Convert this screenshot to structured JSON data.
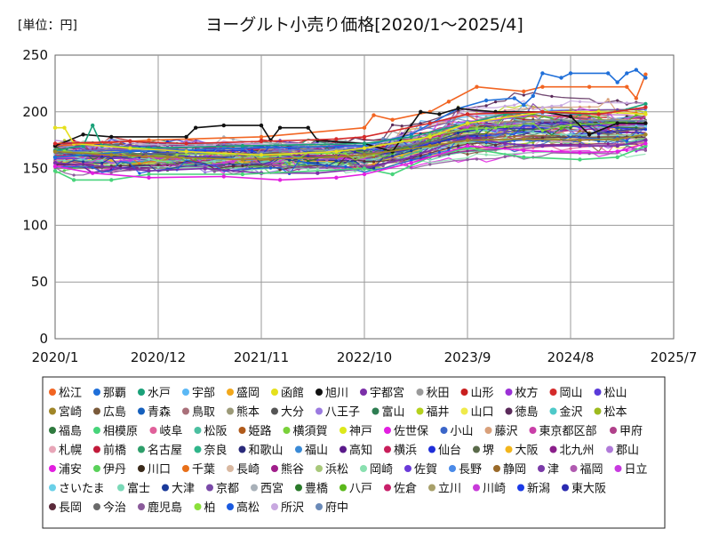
{
  "chart_data": {
    "type": "line",
    "title": "ヨーグルト小売り価格[2020/1～2025/4]",
    "unit_label": "[単位：円]",
    "xlabel": "",
    "ylabel": "",
    "ylim": [
      0,
      250
    ],
    "y_ticks": [
      0,
      50,
      100,
      150,
      200,
      250
    ],
    "x_domain": [
      0,
      66
    ],
    "x_tick_positions": [
      0,
      11,
      22,
      33,
      44,
      55,
      66
    ],
    "x_tick_labels": [
      "2020/1",
      "2020/12",
      "2021/11",
      "2022/10",
      "2023/9",
      "2024/8",
      "2025/7"
    ],
    "grid": true,
    "legend_position": "bottom",
    "n_months": 64,
    "highlights": [
      {
        "name": "松江",
        "color": "#F26522",
        "points": [
          [
            0,
            170
          ],
          [
            10,
            175
          ],
          [
            22,
            178
          ],
          [
            33,
            186
          ],
          [
            34,
            197
          ],
          [
            36,
            193
          ],
          [
            40,
            200
          ],
          [
            42,
            209
          ],
          [
            45,
            222
          ],
          [
            50,
            218
          ],
          [
            52,
            222
          ],
          [
            57,
            222
          ],
          [
            61,
            222
          ],
          [
            62,
            212
          ],
          [
            63,
            233
          ]
        ]
      },
      {
        "name": "那覇",
        "color": "#1F6FD9",
        "points": [
          [
            0,
            160
          ],
          [
            8,
            165
          ],
          [
            20,
            168
          ],
          [
            33,
            170
          ],
          [
            38,
            180
          ],
          [
            43,
            203
          ],
          [
            46,
            210
          ],
          [
            49,
            212
          ],
          [
            50,
            206
          ],
          [
            51,
            214
          ],
          [
            52,
            234
          ],
          [
            54,
            230
          ],
          [
            55,
            234
          ],
          [
            59,
            234
          ],
          [
            60,
            226
          ],
          [
            61,
            234
          ],
          [
            62,
            237
          ],
          [
            63,
            230
          ]
        ]
      },
      {
        "name": "旭川",
        "color": "#111111",
        "points": [
          [
            0,
            170
          ],
          [
            3,
            180
          ],
          [
            6,
            178
          ],
          [
            14,
            178
          ],
          [
            15,
            186
          ],
          [
            18,
            188
          ],
          [
            22,
            188
          ],
          [
            23,
            175
          ],
          [
            24,
            186
          ],
          [
            27,
            186
          ],
          [
            28,
            175
          ],
          [
            33,
            172
          ],
          [
            36,
            165
          ],
          [
            39,
            200
          ],
          [
            41,
            198
          ],
          [
            43,
            203
          ],
          [
            47,
            200
          ],
          [
            52,
            200
          ],
          [
            55,
            196
          ],
          [
            57,
            180
          ],
          [
            60,
            190
          ],
          [
            63,
            190
          ]
        ]
      },
      {
        "name": "水戸",
        "color": "#1AA179",
        "points": [
          [
            0,
            166
          ],
          [
            3,
            170
          ],
          [
            4,
            188
          ],
          [
            5,
            170
          ],
          [
            10,
            168
          ],
          [
            20,
            170
          ],
          [
            33,
            172
          ],
          [
            38,
            178
          ],
          [
            44,
            190
          ],
          [
            48,
            198
          ],
          [
            52,
            200
          ],
          [
            56,
            198
          ],
          [
            60,
            200
          ],
          [
            63,
            207
          ]
        ]
      },
      {
        "name": "宇都宮",
        "color": "#7B2FA8",
        "points": [
          [
            0,
            155
          ],
          [
            5,
            152
          ],
          [
            10,
            148
          ],
          [
            16,
            150
          ],
          [
            22,
            146
          ],
          [
            28,
            146
          ],
          [
            33,
            150
          ],
          [
            38,
            160
          ],
          [
            44,
            178
          ],
          [
            48,
            172
          ],
          [
            52,
            170
          ],
          [
            56,
            170
          ],
          [
            60,
            170
          ],
          [
            63,
            175
          ]
        ]
      },
      {
        "name": "相模原",
        "color": "#47D47A",
        "points": [
          [
            0,
            148
          ],
          [
            2,
            140
          ],
          [
            6,
            140
          ],
          [
            10,
            145
          ],
          [
            20,
            145
          ],
          [
            33,
            150
          ],
          [
            36,
            145
          ],
          [
            40,
            160
          ],
          [
            44,
            168
          ],
          [
            50,
            160
          ],
          [
            56,
            158
          ],
          [
            60,
            160
          ],
          [
            63,
            170
          ]
        ]
      },
      {
        "name": "浦安",
        "color": "#E21FE0",
        "points": [
          [
            0,
            152
          ],
          [
            4,
            146
          ],
          [
            10,
            142
          ],
          [
            18,
            143
          ],
          [
            24,
            140
          ],
          [
            30,
            142
          ],
          [
            33,
            145
          ],
          [
            38,
            155
          ],
          [
            44,
            170
          ],
          [
            50,
            166
          ],
          [
            56,
            164
          ],
          [
            60,
            165
          ],
          [
            63,
            172
          ]
        ]
      },
      {
        "name": "宮崎",
        "color": "#A08628",
        "points": [
          [
            0,
            165
          ],
          [
            6,
            162
          ],
          [
            12,
            160
          ],
          [
            20,
            158
          ],
          [
            30,
            160
          ],
          [
            33,
            162
          ],
          [
            40,
            170
          ],
          [
            44,
            175
          ],
          [
            50,
            176
          ],
          [
            56,
            175
          ],
          [
            60,
            176
          ],
          [
            63,
            180
          ]
        ]
      },
      {
        "name": "函館",
        "color": "#E5E01C",
        "points": [
          [
            0,
            186
          ],
          [
            1,
            186
          ],
          [
            2,
            172
          ],
          [
            8,
            168
          ],
          [
            14,
            165
          ],
          [
            22,
            162
          ],
          [
            30,
            165
          ],
          [
            33,
            168
          ],
          [
            40,
            178
          ],
          [
            44,
            190
          ],
          [
            52,
            200
          ],
          [
            58,
            200
          ],
          [
            63,
            198
          ]
        ]
      },
      {
        "name": "岡山",
        "color": "#D42B2B",
        "points": [
          [
            0,
            172
          ],
          [
            8,
            174
          ],
          [
            14,
            172
          ],
          [
            22,
            174
          ],
          [
            30,
            176
          ],
          [
            33,
            178
          ],
          [
            40,
            190
          ],
          [
            44,
            198
          ],
          [
            52,
            200
          ],
          [
            58,
            198
          ],
          [
            63,
            204
          ]
        ]
      }
    ],
    "legend": [
      {
        "name": "松江",
        "color": "#F26522"
      },
      {
        "name": "那覇",
        "color": "#1F6FD9"
      },
      {
        "name": "水戸",
        "color": "#1AA179"
      },
      {
        "name": "宇部",
        "color": "#5BB8F5"
      },
      {
        "name": "盛岡",
        "color": "#F2A81C"
      },
      {
        "name": "函館",
        "color": "#E5E01C"
      },
      {
        "name": "旭川",
        "color": "#111111"
      },
      {
        "name": "宇都宮",
        "color": "#7B2FA8"
      },
      {
        "name": "秋田",
        "color": "#9A9A9A"
      },
      {
        "name": "山形",
        "color": "#C81E1E"
      },
      {
        "name": "枚方",
        "color": "#9B30D6"
      },
      {
        "name": "岡山",
        "color": "#D42B2B"
      },
      {
        "name": "松山",
        "color": "#5A3BD9"
      },
      {
        "name": "宮崎",
        "color": "#A08628"
      },
      {
        "name": "広島",
        "color": "#7A5A3A"
      },
      {
        "name": "青森",
        "color": "#1560BD"
      },
      {
        "name": "鳥取",
        "color": "#A9707A"
      },
      {
        "name": "熊本",
        "color": "#9C9A78"
      },
      {
        "name": "大分",
        "color": "#555555"
      },
      {
        "name": "八王子",
        "color": "#9B7AE0"
      },
      {
        "name": "富山",
        "color": "#2E7D52"
      },
      {
        "name": "福井",
        "color": "#B5D11E"
      },
      {
        "name": "山口",
        "color": "#EFEA4A"
      },
      {
        "name": "徳島",
        "color": "#5A2A5A"
      },
      {
        "name": "金沢",
        "color": "#4EC9C9"
      },
      {
        "name": "松本",
        "color": "#9DBA1E"
      },
      {
        "name": "福島",
        "color": "#2F7A3F"
      },
      {
        "name": "相模原",
        "color": "#47D47A"
      },
      {
        "name": "岐阜",
        "color": "#E0609A"
      },
      {
        "name": "松阪",
        "color": "#4BBFA0"
      },
      {
        "name": "姫路",
        "color": "#B05A1A"
      },
      {
        "name": "横須賀",
        "color": "#7AD13A"
      },
      {
        "name": "神戸",
        "color": "#DDE81A"
      },
      {
        "name": "佐世保",
        "color": "#E21FE0"
      },
      {
        "name": "小山",
        "color": "#3B66C9"
      },
      {
        "name": "藤沢",
        "color": "#D9A07A"
      },
      {
        "name": "東京都区部",
        "color": "#C93FA8"
      },
      {
        "name": "甲府",
        "color": "#B0408A"
      },
      {
        "name": "札幌",
        "color": "#E8A6B8"
      },
      {
        "name": "前橋",
        "color": "#C21A3A"
      },
      {
        "name": "名古屋",
        "color": "#2E9E6A"
      },
      {
        "name": "奈良",
        "color": "#2FB58A"
      },
      {
        "name": "和歌山",
        "color": "#2A2A7A"
      },
      {
        "name": "福山",
        "color": "#3A8AD6"
      },
      {
        "name": "高知",
        "color": "#5A1A8A"
      },
      {
        "name": "横浜",
        "color": "#C81E5A"
      },
      {
        "name": "仙台",
        "color": "#1E2ED9"
      },
      {
        "name": "堺",
        "color": "#5A6A4A"
      },
      {
        "name": "大阪",
        "color": "#F2B51C"
      },
      {
        "name": "北九州",
        "color": "#8A1E8A"
      },
      {
        "name": "郡山",
        "color": "#B07AD9"
      },
      {
        "name": "浦安",
        "color": "#E21FE0"
      },
      {
        "name": "伊丹",
        "color": "#5AD15A"
      },
      {
        "name": "川口",
        "color": "#3A2A1A"
      },
      {
        "name": "千葉",
        "color": "#E8701A"
      },
      {
        "name": "長崎",
        "color": "#D9B8A0"
      },
      {
        "name": "熊谷",
        "color": "#A01E8A"
      },
      {
        "name": "浜松",
        "color": "#A8C87A"
      },
      {
        "name": "岡崎",
        "color": "#8AE0B0"
      },
      {
        "name": "佐賀",
        "color": "#6A3AD9"
      },
      {
        "name": "長野",
        "color": "#4A8AE8"
      },
      {
        "name": "静岡",
        "color": "#9A6A2A"
      },
      {
        "name": "津",
        "color": "#7A3AA8"
      },
      {
        "name": "福岡",
        "color": "#B05AB0"
      },
      {
        "name": "日立",
        "color": "#C83AE0"
      },
      {
        "name": "さいたま",
        "color": "#6AD0E8"
      },
      {
        "name": "富士",
        "color": "#7AD9B8"
      },
      {
        "name": "大津",
        "color": "#1A3A9A"
      },
      {
        "name": "京都",
        "color": "#7A4AA8"
      },
      {
        "name": "西宮",
        "color": "#A8B0B8"
      },
      {
        "name": "豊橋",
        "color": "#2A7A2A"
      },
      {
        "name": "八戸",
        "color": "#5AB81A"
      },
      {
        "name": "佐倉",
        "color": "#C8206A"
      },
      {
        "name": "立川",
        "color": "#A8A06A"
      },
      {
        "name": "川崎",
        "color": "#C83AD9"
      },
      {
        "name": "新潟",
        "color": "#1A3AE8"
      },
      {
        "name": "東大阪",
        "color": "#2A2AB0"
      },
      {
        "name": "長岡",
        "color": "#5A2A3A"
      },
      {
        "name": "今治",
        "color": "#6A6A6A"
      },
      {
        "name": "鹿児島",
        "color": "#8A5A9A"
      },
      {
        "name": "柏",
        "color": "#8AE03A"
      },
      {
        "name": "高松",
        "color": "#1A5AE0"
      },
      {
        "name": "所沢",
        "color": "#C8A8E0"
      },
      {
        "name": "府中",
        "color": "#6A8AB8"
      }
    ]
  }
}
